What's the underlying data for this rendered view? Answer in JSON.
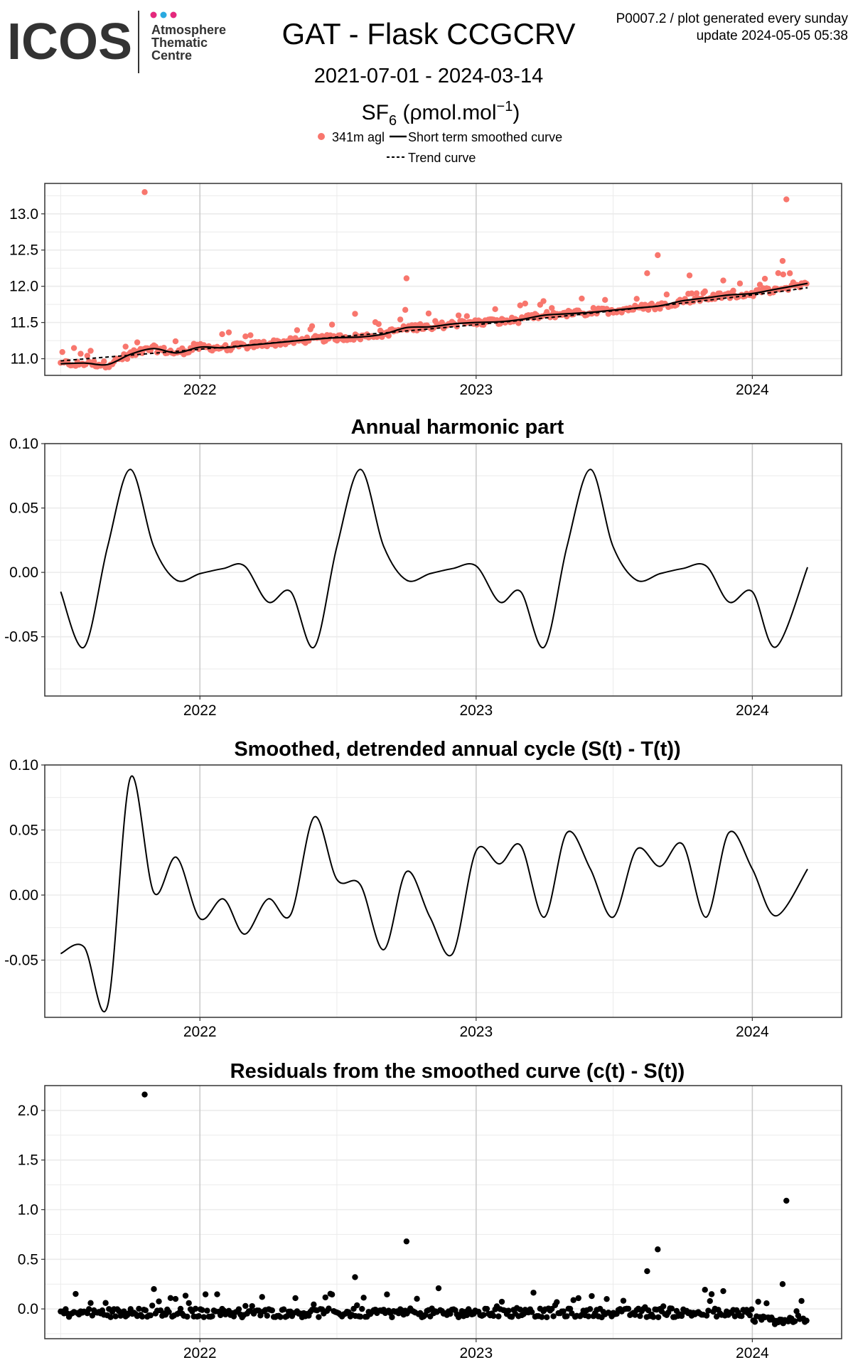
{
  "header": {
    "logo_text": "ICOS",
    "logo_sub": [
      "Atmosphere",
      "Thematic",
      "Centre"
    ],
    "logo_dot_colors": [
      "#e4287c",
      "#29a9e0",
      "#e4287c"
    ],
    "title": "GAT - Flask CCGCRV",
    "date_range": "2021-07-01 - 2024-03-14",
    "species_base": "SF",
    "species_sub": "6",
    "unit_open": " (ρmol.mol",
    "unit_sup": "−1",
    "unit_close": ")",
    "meta_line1": "P0007.2 / plot generated every sunday",
    "meta_line2": "update  2024-05-05 05:38"
  },
  "legend": {
    "points_label": "341m agl",
    "smooth_label": "Short term smoothed curve",
    "trend_label": "Trend curve"
  },
  "colors": {
    "points": "#f8766d",
    "line": "#000000",
    "grid_major": "#cccccc",
    "grid_minor": "#ebebeb",
    "panel_border": "#333333"
  },
  "chart_data": [
    {
      "id": "concentration",
      "type": "scatter",
      "title": "",
      "x_ticks": [
        "2022",
        "2023",
        "2024"
      ],
      "ylim": [
        10.77,
        13.42
      ],
      "y_ticks": [
        "11.0",
        "11.5",
        "12.0",
        "12.5",
        "13.0"
      ],
      "series": [
        {
          "name": "341m agl",
          "kind": "points"
        },
        {
          "name": "Short term smoothed curve",
          "kind": "line"
        },
        {
          "name": "Trend curve",
          "kind": "dashed"
        }
      ],
      "smooth_curve": {
        "x": [
          "2021-07-01",
          "2021-08-01",
          "2021-09-01",
          "2021-10-01",
          "2021-11-01",
          "2021-12-01",
          "2022-01-01",
          "2022-02-01",
          "2022-03-01",
          "2022-04-01",
          "2022-05-01",
          "2022-06-01",
          "2022-07-01",
          "2022-08-01",
          "2022-09-01",
          "2022-10-01",
          "2022-11-01",
          "2022-12-01",
          "2023-01-01",
          "2023-02-01",
          "2023-03-01",
          "2023-04-01",
          "2023-05-01",
          "2023-06-01",
          "2023-07-01",
          "2023-08-01",
          "2023-09-01",
          "2023-10-01",
          "2023-11-01",
          "2023-12-01",
          "2024-01-01",
          "2024-02-01",
          "2024-03-14"
        ],
        "y": [
          10.93,
          10.94,
          10.92,
          11.06,
          11.14,
          11.08,
          11.16,
          11.15,
          11.18,
          11.21,
          11.24,
          11.27,
          11.29,
          11.3,
          11.34,
          11.43,
          11.44,
          11.48,
          11.5,
          11.51,
          11.54,
          11.6,
          11.62,
          11.64,
          11.67,
          11.7,
          11.73,
          11.8,
          11.84,
          11.88,
          11.9,
          11.96,
          12.04
        ]
      },
      "trend_curve": {
        "x": [
          "2021-07-01",
          "2022-01-01",
          "2022-07-01",
          "2023-01-01",
          "2023-07-01",
          "2024-01-01",
          "2024-03-14"
        ],
        "y": [
          10.97,
          11.13,
          11.3,
          11.47,
          11.66,
          11.88,
          11.98
        ]
      }
    },
    {
      "id": "harmonic",
      "type": "line",
      "title": "Annual harmonic part",
      "x_ticks": [
        "2022",
        "2023",
        "2024"
      ],
      "ylim": [
        -0.096,
        0.1
      ],
      "y_ticks": [
        "-0.05",
        "0.00",
        "0.05",
        "0.10"
      ],
      "x": [
        "2021-07-01",
        "2021-08-01",
        "2021-09-01",
        "2021-10-01",
        "2021-11-01",
        "2021-12-01",
        "2022-01-01",
        "2022-02-01",
        "2022-03-01",
        "2022-04-01",
        "2022-05-01",
        "2022-06-01",
        "2022-07-01",
        "2022-08-01",
        "2022-09-01",
        "2022-10-01",
        "2022-11-01",
        "2022-12-01",
        "2023-01-01",
        "2023-02-01",
        "2023-03-01",
        "2023-04-01",
        "2023-05-01",
        "2023-06-01",
        "2023-07-01",
        "2023-08-01",
        "2023-09-01",
        "2023-10-01",
        "2023-11-01",
        "2023-12-01",
        "2024-01-01",
        "2024-02-01",
        "2024-03-14"
      ],
      "y": [
        -0.015,
        -0.058,
        0.02,
        0.08,
        0.02,
        -0.006,
        -0.001,
        0.003,
        0.005,
        -0.023,
        -0.015,
        -0.058,
        0.02,
        0.08,
        0.02,
        -0.006,
        -0.001,
        0.003,
        0.005,
        -0.023,
        -0.015,
        -0.058,
        0.02,
        0.08,
        0.02,
        -0.006,
        -0.001,
        0.003,
        0.005,
        -0.023,
        -0.015,
        -0.058,
        0.004
      ]
    },
    {
      "id": "detrended",
      "type": "line",
      "title": "Smoothed, detrended annual cycle (S(t) - T(t))",
      "x_ticks": [
        "2022",
        "2023",
        "2024"
      ],
      "ylim": [
        -0.094,
        0.1
      ],
      "y_ticks": [
        "-0.05",
        "0.00",
        "0.05",
        "0.10"
      ],
      "x": [
        "2021-07-01",
        "2021-08-01",
        "2021-09-01",
        "2021-10-01",
        "2021-11-01",
        "2021-12-01",
        "2022-01-01",
        "2022-02-01",
        "2022-03-01",
        "2022-04-01",
        "2022-05-01",
        "2022-06-01",
        "2022-07-01",
        "2022-08-01",
        "2022-09-01",
        "2022-10-01",
        "2022-11-01",
        "2022-12-01",
        "2023-01-01",
        "2023-02-01",
        "2023-03-01",
        "2023-04-01",
        "2023-05-01",
        "2023-06-01",
        "2023-07-01",
        "2023-08-01",
        "2023-09-01",
        "2023-10-01",
        "2023-11-01",
        "2023-12-01",
        "2024-01-01",
        "2024-02-01",
        "2024-03-14"
      ],
      "y": [
        -0.045,
        -0.04,
        -0.085,
        0.09,
        0.002,
        0.029,
        -0.018,
        -0.003,
        -0.03,
        -0.003,
        -0.015,
        0.06,
        0.012,
        0.008,
        -0.042,
        0.018,
        -0.017,
        -0.045,
        0.034,
        0.024,
        0.038,
        -0.017,
        0.048,
        0.02,
        -0.017,
        0.035,
        0.022,
        0.039,
        -0.017,
        0.048,
        0.02,
        -0.016,
        0.02
      ]
    },
    {
      "id": "residuals",
      "type": "scatter",
      "title": "Residuals from the smoothed curve (c(t) - S(t))",
      "x_ticks": [
        "2022",
        "2023",
        "2024"
      ],
      "ylim": [
        -0.3,
        2.25
      ],
      "y_ticks": [
        "0.0",
        "0.5",
        "1.0",
        "1.5",
        "2.0"
      ],
      "outliers": [
        {
          "x": "2021-10-20",
          "y": 2.16
        },
        {
          "x": "2022-10-01",
          "y": 0.68
        },
        {
          "x": "2022-07-25",
          "y": 0.32
        },
        {
          "x": "2023-08-29",
          "y": 0.6
        },
        {
          "x": "2023-08-15",
          "y": 0.38
        },
        {
          "x": "2024-02-15",
          "y": 1.09
        },
        {
          "x": "2024-02-10",
          "y": 0.25
        }
      ]
    }
  ]
}
